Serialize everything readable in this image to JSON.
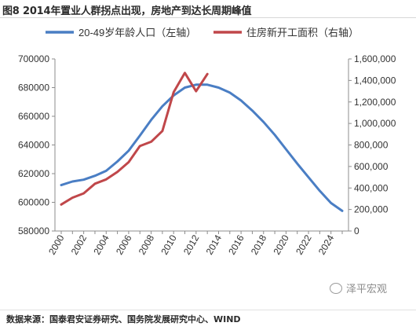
{
  "figure_title": "图8 2014年置业人群拐点出现，房地产到达长周期峰值",
  "source_text": "数据来源：国泰君安证券研究、国务院发展研究中心、WIND",
  "watermark": "泽平宏观",
  "colors": {
    "left_series": "#4a7ec4",
    "right_series": "#c0474a",
    "text": "#333333"
  },
  "chart_data": {
    "type": "line",
    "x": [
      2000,
      2001,
      2002,
      2003,
      2004,
      2005,
      2006,
      2007,
      2008,
      2009,
      2010,
      2011,
      2012,
      2013,
      2014,
      2015,
      2016,
      2017,
      2018,
      2019,
      2020,
      2021,
      2022,
      2023,
      2024,
      2025
    ],
    "x_ticks": [
      "2000",
      "2002",
      "2004",
      "2006",
      "2008",
      "2010",
      "2012",
      "2014",
      "2016",
      "2018",
      "2020",
      "2022",
      "2024"
    ],
    "y_left_ticks": [
      "580000",
      "600000",
      "620000",
      "640000",
      "660000",
      "680000",
      "700000"
    ],
    "y_right_ticks": [
      "0",
      "200,000",
      "400,000",
      "600,000",
      "800,000",
      "1,000,000",
      "1,200,000",
      "1,400,000",
      "1,600,000"
    ],
    "ylim_left": [
      580000,
      700000
    ],
    "ylim_right": [
      0,
      1600000
    ],
    "series": [
      {
        "name": "20-49岁年龄人口（左轴）",
        "axis": "left",
        "color": "#4a7ec4",
        "x": [
          2000,
          2001,
          2002,
          2003,
          2004,
          2005,
          2006,
          2007,
          2008,
          2009,
          2010,
          2011,
          2012,
          2013,
          2014,
          2015,
          2016,
          2017,
          2018,
          2019,
          2020,
          2021,
          2022,
          2023,
          2024,
          2025
        ],
        "values": [
          612000,
          614500,
          615800,
          618500,
          622000,
          628500,
          636000,
          646500,
          657500,
          667000,
          674500,
          680000,
          682000,
          682000,
          680000,
          676500,
          671000,
          664000,
          656000,
          647000,
          637000,
          627000,
          617500,
          608000,
          599500,
          594000
        ]
      },
      {
        "name": "住房新开工面积（右轴）",
        "axis": "right",
        "color": "#c0474a",
        "x": [
          2000,
          2001,
          2002,
          2003,
          2004,
          2005,
          2006,
          2007,
          2008,
          2009,
          2010,
          2011,
          2012,
          2013
        ],
        "values": [
          246000,
          310000,
          350000,
          440000,
          480000,
          550000,
          640000,
          790000,
          830000,
          930000,
          1290000,
          1470000,
          1300000,
          1460000
        ]
      }
    ],
    "grid": false,
    "legend_position": "top"
  }
}
